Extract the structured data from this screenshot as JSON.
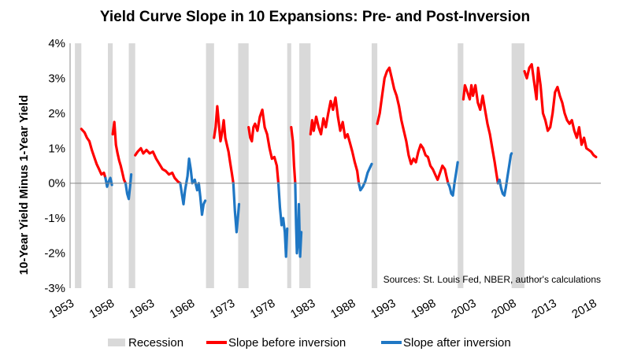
{
  "chart_data": {
    "type": "line",
    "title": "Yield Curve Slope in 10 Expansions: Pre- and Post-Inversion",
    "xlabel": "",
    "ylabel": "10-Year Yield Minus 1-Year Yield",
    "xlim": [
      1953,
      2019
    ],
    "ylim": [
      -3,
      4
    ],
    "x_ticks": [
      1953,
      1958,
      1963,
      1968,
      1973,
      1978,
      1983,
      1988,
      1993,
      1998,
      2003,
      2008,
      2013,
      2018
    ],
    "y_ticks": [
      {
        "value": -3,
        "label": "-3%"
      },
      {
        "value": -2,
        "label": "-2%"
      },
      {
        "value": -1,
        "label": "-1%"
      },
      {
        "value": 0,
        "label": "0%"
      },
      {
        "value": 1,
        "label": "1%"
      },
      {
        "value": 2,
        "label": "2%"
      },
      {
        "value": 3,
        "label": "3%"
      },
      {
        "value": 4,
        "label": "4%"
      }
    ],
    "grid": false,
    "legend_position": "bottom",
    "source_note": "Sources: St. Louis Fed, NBER, author's calculations",
    "recessions": [
      [
        1953.6,
        1954.4
      ],
      [
        1957.7,
        1958.3
      ],
      [
        1960.3,
        1961.1
      ],
      [
        1969.9,
        1970.9
      ],
      [
        1973.9,
        1975.2
      ],
      [
        1980.0,
        1980.5
      ],
      [
        1981.5,
        1982.9
      ],
      [
        1990.5,
        1991.2
      ],
      [
        2001.2,
        2001.9
      ],
      [
        2007.9,
        2009.5
      ]
    ],
    "legend": {
      "recession": "Recession",
      "before": "Slope before inversion",
      "after": "Slope after inversion"
    },
    "colors": {
      "recession": "#d9d9d9",
      "before": "#ff0000",
      "after": "#1f77c4"
    },
    "series": [
      {
        "name": "Slope before inversion",
        "segments": [
          [
            [
              1954.4,
              1.55
            ],
            [
              1954.8,
              1.45
            ],
            [
              1955.1,
              1.3
            ],
            [
              1955.4,
              1.2
            ],
            [
              1955.7,
              0.95
            ],
            [
              1956.0,
              0.75
            ],
            [
              1956.3,
              0.55
            ],
            [
              1956.6,
              0.4
            ],
            [
              1956.9,
              0.25
            ],
            [
              1957.2,
              0.3
            ],
            [
              1957.4,
              0.15
            ]
          ],
          [
            [
              1958.3,
              1.4
            ],
            [
              1958.5,
              1.75
            ],
            [
              1958.7,
              1.1
            ],
            [
              1958.9,
              0.85
            ],
            [
              1959.1,
              0.65
            ],
            [
              1959.3,
              0.5
            ],
            [
              1959.5,
              0.3
            ],
            [
              1959.7,
              0.1
            ],
            [
              1959.9,
              0.0
            ]
          ],
          [
            [
              1961.1,
              0.8
            ],
            [
              1961.4,
              0.9
            ],
            [
              1961.8,
              1.0
            ],
            [
              1962.1,
              0.85
            ],
            [
              1962.5,
              0.95
            ],
            [
              1962.9,
              0.85
            ],
            [
              1963.3,
              0.9
            ],
            [
              1963.7,
              0.7
            ],
            [
              1964.1,
              0.55
            ],
            [
              1964.5,
              0.4
            ],
            [
              1964.9,
              0.35
            ],
            [
              1965.3,
              0.25
            ],
            [
              1965.7,
              0.3
            ],
            [
              1966.0,
              0.15
            ],
            [
              1966.4,
              0.05
            ],
            [
              1966.7,
              0.0
            ]
          ],
          [
            [
              1970.9,
              1.3
            ],
            [
              1971.1,
              1.6
            ],
            [
              1971.3,
              2.2
            ],
            [
              1971.5,
              1.7
            ],
            [
              1971.7,
              1.2
            ],
            [
              1971.9,
              1.45
            ],
            [
              1972.1,
              1.8
            ],
            [
              1972.3,
              1.3
            ],
            [
              1972.5,
              1.1
            ],
            [
              1972.7,
              0.9
            ],
            [
              1972.9,
              0.6
            ],
            [
              1973.1,
              0.3
            ],
            [
              1973.3,
              0.0
            ]
          ],
          [
            [
              1975.2,
              1.6
            ],
            [
              1975.4,
              1.3
            ],
            [
              1975.6,
              1.2
            ],
            [
              1975.8,
              1.6
            ],
            [
              1976.0,
              1.7
            ],
            [
              1976.3,
              1.5
            ],
            [
              1976.6,
              1.9
            ],
            [
              1976.9,
              2.1
            ],
            [
              1977.2,
              1.6
            ],
            [
              1977.5,
              1.4
            ],
            [
              1977.8,
              1.0
            ],
            [
              1978.1,
              0.7
            ],
            [
              1978.4,
              0.75
            ],
            [
              1978.7,
              0.5
            ],
            [
              1978.9,
              0.0
            ]
          ],
          [
            [
              1980.5,
              1.6
            ],
            [
              1980.7,
              1.2
            ],
            [
              1980.85,
              0.5
            ],
            [
              1981.0,
              0.0
            ]
          ],
          [
            [
              1982.9,
              1.4
            ],
            [
              1983.1,
              1.8
            ],
            [
              1983.3,
              1.5
            ],
            [
              1983.6,
              1.9
            ],
            [
              1983.9,
              1.6
            ],
            [
              1984.2,
              1.4
            ],
            [
              1984.5,
              1.85
            ],
            [
              1984.8,
              1.6
            ],
            [
              1985.1,
              2.0
            ],
            [
              1985.4,
              2.35
            ],
            [
              1985.7,
              2.1
            ],
            [
              1986.0,
              2.45
            ],
            [
              1986.3,
              1.9
            ],
            [
              1986.6,
              1.5
            ],
            [
              1986.9,
              1.75
            ],
            [
              1987.2,
              1.3
            ],
            [
              1987.5,
              1.4
            ],
            [
              1987.8,
              1.15
            ],
            [
              1988.1,
              0.9
            ],
            [
              1988.4,
              0.6
            ],
            [
              1988.7,
              0.35
            ],
            [
              1988.9,
              0.0
            ]
          ],
          [
            [
              1991.2,
              1.7
            ],
            [
              1991.5,
              2.0
            ],
            [
              1991.8,
              2.5
            ],
            [
              1992.1,
              3.0
            ],
            [
              1992.4,
              3.2
            ],
            [
              1992.7,
              3.3
            ],
            [
              1993.0,
              3.0
            ],
            [
              1993.3,
              2.7
            ],
            [
              1993.6,
              2.5
            ],
            [
              1993.9,
              2.2
            ],
            [
              1994.2,
              1.8
            ],
            [
              1994.5,
              1.5
            ],
            [
              1994.8,
              1.2
            ],
            [
              1995.1,
              0.8
            ],
            [
              1995.4,
              0.55
            ],
            [
              1995.7,
              0.7
            ],
            [
              1996.0,
              0.6
            ],
            [
              1996.3,
              0.9
            ],
            [
              1996.6,
              1.1
            ],
            [
              1996.9,
              1.0
            ],
            [
              1997.2,
              0.8
            ],
            [
              1997.5,
              0.75
            ],
            [
              1997.8,
              0.5
            ],
            [
              1998.1,
              0.4
            ],
            [
              1998.4,
              0.25
            ],
            [
              1998.7,
              0.1
            ],
            [
              1999.0,
              0.3
            ],
            [
              1999.3,
              0.5
            ],
            [
              1999.6,
              0.4
            ],
            [
              1999.8,
              0.2
            ],
            [
              2000.0,
              0.0
            ]
          ],
          [
            [
              2001.9,
              2.4
            ],
            [
              2002.1,
              2.8
            ],
            [
              2002.4,
              2.6
            ],
            [
              2002.7,
              2.4
            ],
            [
              2002.9,
              2.8
            ],
            [
              2003.1,
              2.5
            ],
            [
              2003.4,
              2.8
            ],
            [
              2003.7,
              2.3
            ],
            [
              2004.0,
              2.1
            ],
            [
              2004.3,
              2.5
            ],
            [
              2004.6,
              2.1
            ],
            [
              2004.9,
              1.7
            ],
            [
              2005.2,
              1.4
            ],
            [
              2005.5,
              1.0
            ],
            [
              2005.8,
              0.6
            ],
            [
              2006.0,
              0.3
            ],
            [
              2006.2,
              0.0
            ]
          ],
          [
            [
              2009.5,
              3.2
            ],
            [
              2009.8,
              3.0
            ],
            [
              2010.1,
              3.3
            ],
            [
              2010.4,
              3.4
            ],
            [
              2010.7,
              2.9
            ],
            [
              2011.0,
              2.4
            ],
            [
              2011.2,
              3.3
            ],
            [
              2011.5,
              2.8
            ],
            [
              2011.8,
              2.0
            ],
            [
              2012.1,
              1.8
            ],
            [
              2012.4,
              1.5
            ],
            [
              2012.7,
              1.6
            ],
            [
              2013.0,
              2.0
            ],
            [
              2013.3,
              2.6
            ],
            [
              2013.6,
              2.75
            ],
            [
              2013.9,
              2.5
            ],
            [
              2014.2,
              2.3
            ],
            [
              2014.5,
              2.0
            ],
            [
              2014.8,
              1.8
            ],
            [
              2015.1,
              1.7
            ],
            [
              2015.4,
              1.8
            ],
            [
              2015.7,
              1.5
            ],
            [
              2016.0,
              1.3
            ],
            [
              2016.3,
              1.6
            ],
            [
              2016.6,
              1.1
            ],
            [
              2016.9,
              1.3
            ],
            [
              2017.2,
              1.0
            ],
            [
              2017.5,
              0.95
            ],
            [
              2017.8,
              0.9
            ],
            [
              2018.1,
              0.8
            ],
            [
              2018.4,
              0.75
            ]
          ]
        ]
      },
      {
        "name": "Slope after inversion",
        "segments": [
          [
            [
              1957.4,
              0.15
            ],
            [
              1957.6,
              -0.1
            ],
            [
              1957.8,
              0.05
            ],
            [
              1958.0,
              0.15
            ],
            [
              1958.2,
              -0.05
            ]
          ],
          [
            [
              1959.9,
              0.0
            ],
            [
              1960.1,
              -0.3
            ],
            [
              1960.3,
              -0.45
            ],
            [
              1960.5,
              0.0
            ],
            [
              1960.6,
              0.25
            ]
          ],
          [
            [
              1966.7,
              0.0
            ],
            [
              1966.9,
              -0.3
            ],
            [
              1967.1,
              -0.6
            ],
            [
              1967.3,
              -0.2
            ],
            [
              1967.6,
              0.2
            ],
            [
              1967.8,
              0.7
            ],
            [
              1968.0,
              0.4
            ],
            [
              1968.2,
              0.0
            ],
            [
              1968.5,
              0.1
            ],
            [
              1968.8,
              -0.2
            ],
            [
              1969.0,
              0.0
            ],
            [
              1969.2,
              -0.4
            ],
            [
              1969.4,
              -0.9
            ],
            [
              1969.6,
              -0.6
            ],
            [
              1969.8,
              -0.5
            ]
          ],
          [
            [
              1973.3,
              0.0
            ],
            [
              1973.5,
              -0.8
            ],
            [
              1973.7,
              -1.4
            ],
            [
              1973.9,
              -0.9
            ],
            [
              1974.0,
              -0.6
            ]
          ],
          [
            [
              1978.9,
              0.0
            ],
            [
              1979.1,
              -0.7
            ],
            [
              1979.3,
              -1.2
            ],
            [
              1979.5,
              -1.0
            ],
            [
              1979.7,
              -1.4
            ],
            [
              1979.85,
              -2.1
            ],
            [
              1980.0,
              -1.3
            ]
          ],
          [
            [
              1981.0,
              0.0
            ],
            [
              1981.1,
              -1.2
            ],
            [
              1981.2,
              -2.0
            ],
            [
              1981.35,
              -1.6
            ],
            [
              1981.45,
              -0.6
            ],
            [
              1981.6,
              -2.1
            ],
            [
              1981.75,
              -1.4
            ]
          ],
          [
            [
              1988.9,
              0.0
            ],
            [
              1989.1,
              -0.2
            ],
            [
              1989.4,
              -0.1
            ],
            [
              1989.7,
              0.05
            ],
            [
              1990.0,
              0.3
            ],
            [
              1990.3,
              0.45
            ],
            [
              1990.5,
              0.55
            ]
          ],
          [
            [
              2000.0,
              0.0
            ],
            [
              2000.2,
              -0.1
            ],
            [
              2000.4,
              -0.3
            ],
            [
              2000.6,
              -0.35
            ],
            [
              2000.8,
              0.0
            ],
            [
              2001.0,
              0.3
            ],
            [
              2001.2,
              0.6
            ]
          ],
          [
            [
              2006.2,
              0.0
            ],
            [
              2006.4,
              0.1
            ],
            [
              2006.6,
              -0.15
            ],
            [
              2006.8,
              -0.3
            ],
            [
              2007.0,
              -0.35
            ],
            [
              2007.2,
              -0.1
            ],
            [
              2007.4,
              0.2
            ],
            [
              2007.6,
              0.5
            ],
            [
              2007.8,
              0.8
            ],
            [
              2007.9,
              0.85
            ]
          ]
        ]
      }
    ]
  }
}
